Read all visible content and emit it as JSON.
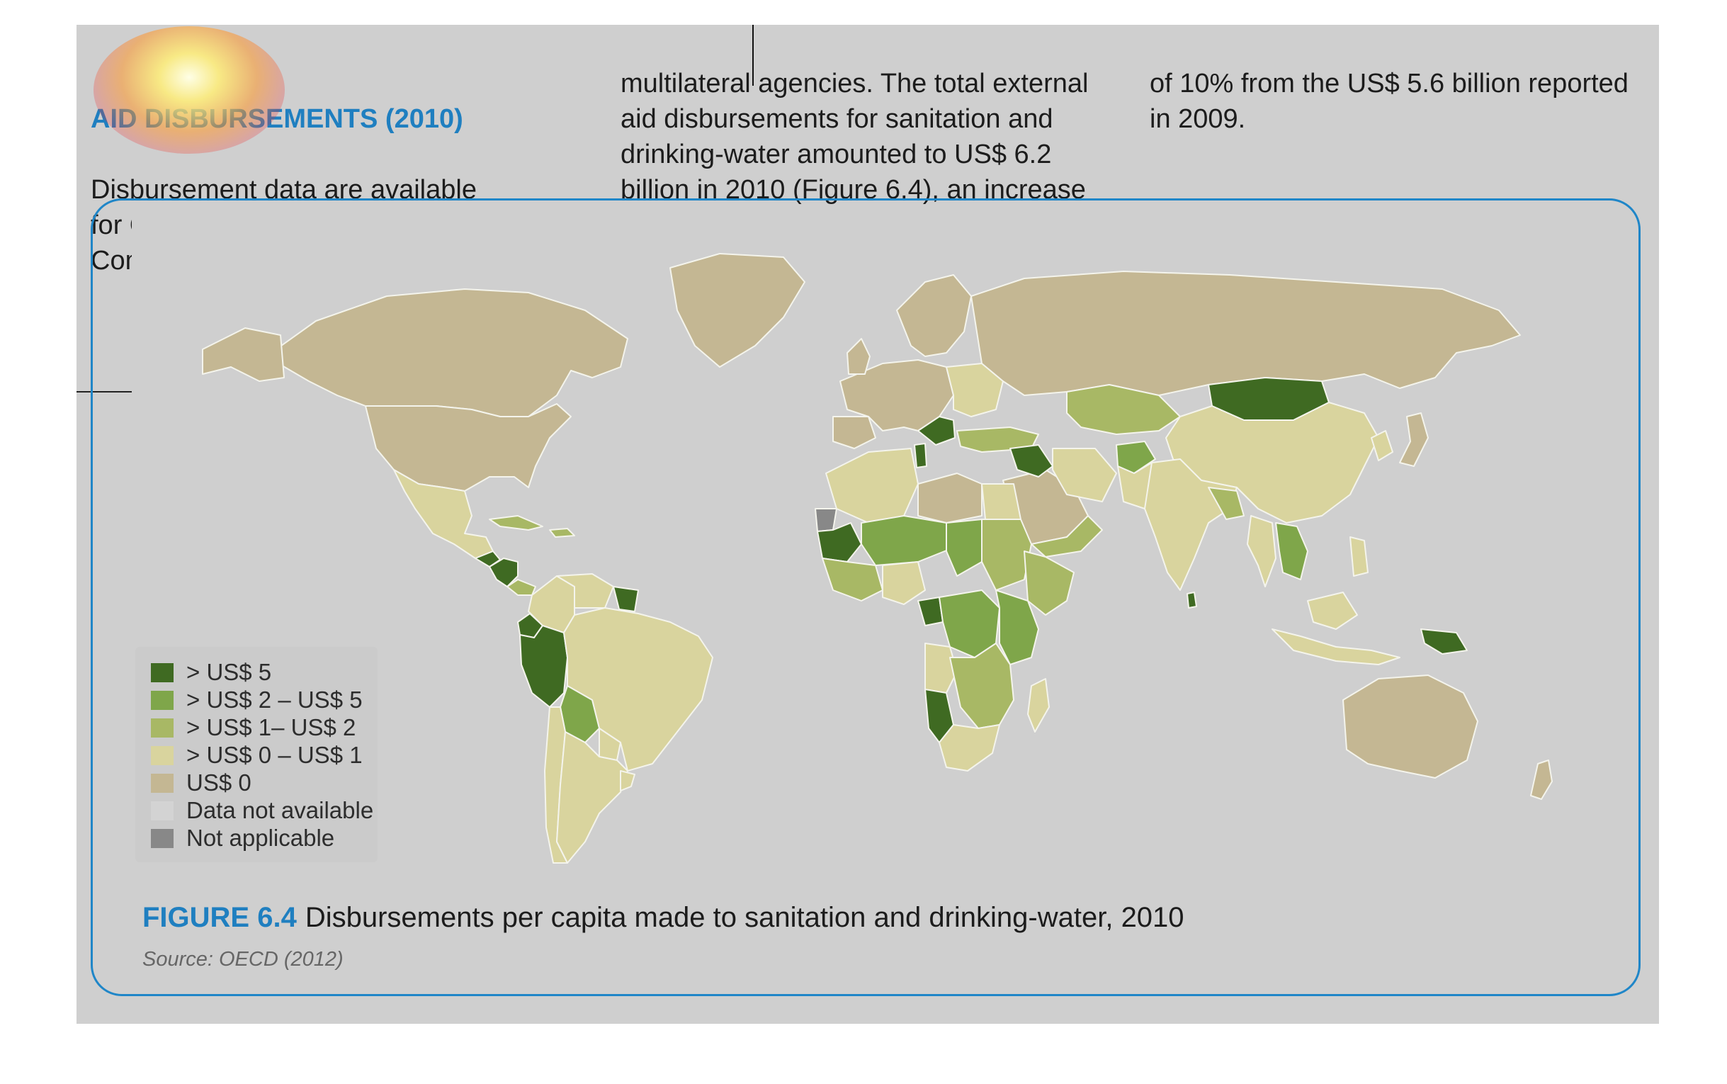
{
  "text_columns": {
    "column_1": {
      "heading": "AID DISBURSEMENTS (2010)",
      "body": "Disbursement data are available\nfor OECD Development Assistance\nCommittee members and several"
    },
    "column_2": {
      "body": "multilateral agencies. The total external\naid disbursements for sanitation and\ndrinking-water amounted to US$ 6.2\nbillion in 2010 (Figure 6.4), an increase"
    },
    "column_3": {
      "body": "of 10% from the US$ 5.6 billion reported\nin 2009."
    }
  },
  "figure": {
    "label": "FIGURE 6.4",
    "title": "Disbursements per capita made to sanitation and drinking-water, 2010",
    "source": "Source: OECD (2012)"
  },
  "legend": [
    {
      "label": "> US$ 5",
      "color": "#3f6a22"
    },
    {
      "label": "> US$ 2 – US$ 5",
      "color": "#7fa64a"
    },
    {
      "label": "> US$ 1– US$ 2",
      "color": "#a8b865"
    },
    {
      "label": "> US$ 0 – US$ 1",
      "color": "#d9d49e"
    },
    {
      "label": "US$ 0",
      "color": "#c4b793"
    },
    {
      "label": "Data not available",
      "color": "#d3d3d3"
    },
    {
      "label": "Not applicable",
      "color": "#888888"
    }
  ],
  "colors": {
    "accent": "#1f7fc0",
    "panel_background": "#cfcfcf",
    "ocean": "#cfcfcf"
  }
}
